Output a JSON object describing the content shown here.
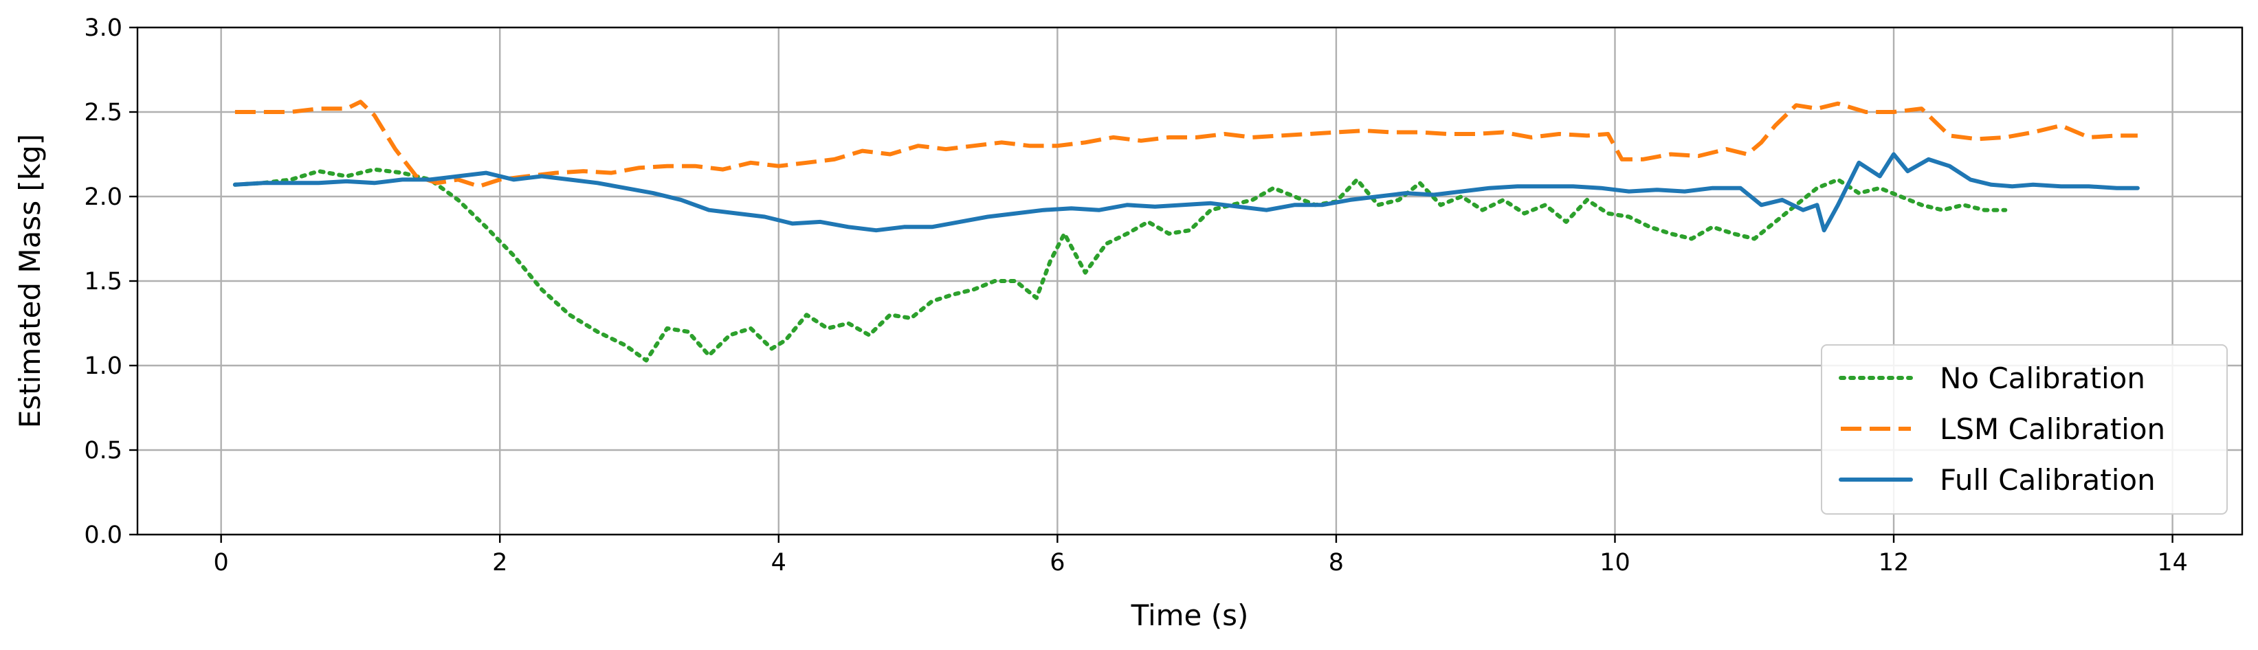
{
  "chart_data": {
    "type": "line",
    "title": "",
    "xlabel": "Time (s)",
    "ylabel": "Estimated Mass [kg]",
    "xlim": [
      -0.6,
      14.5
    ],
    "ylim": [
      0.0,
      3.0
    ],
    "x_ticks": [
      0,
      2,
      4,
      6,
      8,
      10,
      12,
      14
    ],
    "x_tick_labels": [
      "0",
      "2",
      "4",
      "6",
      "8",
      "10",
      "12",
      "14"
    ],
    "y_ticks": [
      0.0,
      0.5,
      1.0,
      1.5,
      2.0,
      2.5,
      3.0
    ],
    "y_tick_labels": [
      "0.0",
      "0.5",
      "1.0",
      "1.5",
      "2.0",
      "2.5",
      "3.0"
    ],
    "grid": true,
    "legend_position": "lower-right",
    "series": [
      {
        "name": "No Calibration",
        "color": "#2ca02c",
        "style": "dotted",
        "x": [
          0.1,
          0.3,
          0.5,
          0.7,
          0.9,
          1.1,
          1.3,
          1.5,
          1.7,
          1.9,
          2.1,
          2.3,
          2.5,
          2.7,
          2.9,
          3.05,
          3.2,
          3.35,
          3.5,
          3.65,
          3.8,
          3.95,
          4.05,
          4.2,
          4.35,
          4.5,
          4.65,
          4.8,
          4.95,
          5.1,
          5.25,
          5.4,
          5.55,
          5.7,
          5.85,
          5.95,
          6.05,
          6.2,
          6.35,
          6.5,
          6.65,
          6.8,
          6.95,
          7.1,
          7.25,
          7.4,
          7.55,
          7.7,
          7.85,
          8.0,
          8.15,
          8.3,
          8.45,
          8.6,
          8.75,
          8.9,
          9.05,
          9.2,
          9.35,
          9.5,
          9.65,
          9.8,
          9.95,
          10.1,
          10.25,
          10.4,
          10.55,
          10.7,
          10.85,
          11.0,
          11.15,
          11.3,
          11.45,
          11.6,
          11.75,
          11.9,
          12.05,
          12.2,
          12.35,
          12.5,
          12.65,
          12.8
        ],
        "y": [
          2.07,
          2.08,
          2.1,
          2.15,
          2.12,
          2.16,
          2.14,
          2.1,
          1.98,
          1.82,
          1.65,
          1.45,
          1.3,
          1.2,
          1.12,
          1.03,
          1.22,
          1.2,
          1.06,
          1.18,
          1.22,
          1.1,
          1.15,
          1.3,
          1.22,
          1.25,
          1.18,
          1.3,
          1.28,
          1.38,
          1.42,
          1.45,
          1.5,
          1.5,
          1.4,
          1.62,
          1.78,
          1.55,
          1.72,
          1.78,
          1.85,
          1.78,
          1.8,
          1.92,
          1.95,
          1.98,
          2.05,
          2.0,
          1.95,
          1.97,
          2.1,
          1.95,
          1.98,
          2.08,
          1.95,
          2.0,
          1.92,
          1.98,
          1.9,
          1.95,
          1.85,
          1.98,
          1.9,
          1.88,
          1.82,
          1.78,
          1.75,
          1.82,
          1.78,
          1.75,
          1.85,
          1.95,
          2.05,
          2.1,
          2.02,
          2.05,
          2.0,
          1.95,
          1.92,
          1.95,
          1.92,
          1.92
        ]
      },
      {
        "name": "LSM Calibration",
        "color": "#ff7f0e",
        "style": "dashed",
        "x": [
          0.1,
          0.3,
          0.5,
          0.7,
          0.9,
          1.0,
          1.1,
          1.25,
          1.4,
          1.55,
          1.7,
          1.85,
          2.0,
          2.2,
          2.4,
          2.6,
          2.8,
          3.0,
          3.2,
          3.4,
          3.6,
          3.8,
          4.0,
          4.2,
          4.4,
          4.6,
          4.8,
          5.0,
          5.2,
          5.4,
          5.6,
          5.8,
          6.0,
          6.2,
          6.4,
          6.6,
          6.8,
          7.0,
          7.2,
          7.4,
          7.6,
          7.8,
          8.0,
          8.2,
          8.4,
          8.6,
          8.8,
          9.0,
          9.2,
          9.4,
          9.6,
          9.8,
          9.95,
          10.05,
          10.2,
          10.4,
          10.6,
          10.8,
          10.95,
          11.05,
          11.15,
          11.3,
          11.45,
          11.6,
          11.8,
          12.0,
          12.2,
          12.4,
          12.6,
          12.8,
          13.0,
          13.2,
          13.4,
          13.6,
          13.75
        ],
        "y": [
          2.5,
          2.5,
          2.5,
          2.52,
          2.52,
          2.56,
          2.48,
          2.28,
          2.12,
          2.08,
          2.1,
          2.06,
          2.1,
          2.12,
          2.14,
          2.15,
          2.14,
          2.17,
          2.18,
          2.18,
          2.16,
          2.2,
          2.18,
          2.2,
          2.22,
          2.27,
          2.25,
          2.3,
          2.28,
          2.3,
          2.32,
          2.3,
          2.3,
          2.32,
          2.35,
          2.33,
          2.35,
          2.35,
          2.37,
          2.35,
          2.36,
          2.37,
          2.38,
          2.39,
          2.38,
          2.38,
          2.37,
          2.37,
          2.38,
          2.35,
          2.37,
          2.36,
          2.37,
          2.22,
          2.22,
          2.25,
          2.24,
          2.28,
          2.25,
          2.32,
          2.42,
          2.54,
          2.52,
          2.55,
          2.5,
          2.5,
          2.52,
          2.36,
          2.34,
          2.35,
          2.38,
          2.42,
          2.35,
          2.36,
          2.36
        ]
      },
      {
        "name": "Full Calibration",
        "color": "#1f77b4",
        "style": "solid",
        "x": [
          0.1,
          0.3,
          0.5,
          0.7,
          0.9,
          1.1,
          1.3,
          1.5,
          1.7,
          1.9,
          2.1,
          2.3,
          2.5,
          2.7,
          2.9,
          3.1,
          3.3,
          3.5,
          3.7,
          3.9,
          4.1,
          4.3,
          4.5,
          4.7,
          4.9,
          5.1,
          5.3,
          5.5,
          5.7,
          5.9,
          6.1,
          6.3,
          6.5,
          6.7,
          6.9,
          7.1,
          7.3,
          7.5,
          7.7,
          7.9,
          8.1,
          8.3,
          8.5,
          8.7,
          8.9,
          9.1,
          9.3,
          9.5,
          9.7,
          9.9,
          10.1,
          10.3,
          10.5,
          10.7,
          10.9,
          11.05,
          11.2,
          11.35,
          11.45,
          11.5,
          11.6,
          11.75,
          11.9,
          12.0,
          12.1,
          12.25,
          12.4,
          12.55,
          12.7,
          12.85,
          13.0,
          13.2,
          13.4,
          13.6,
          13.75
        ],
        "y": [
          2.07,
          2.08,
          2.08,
          2.08,
          2.09,
          2.08,
          2.1,
          2.1,
          2.12,
          2.14,
          2.1,
          2.12,
          2.1,
          2.08,
          2.05,
          2.02,
          1.98,
          1.92,
          1.9,
          1.88,
          1.84,
          1.85,
          1.82,
          1.8,
          1.82,
          1.82,
          1.85,
          1.88,
          1.9,
          1.92,
          1.93,
          1.92,
          1.95,
          1.94,
          1.95,
          1.96,
          1.94,
          1.92,
          1.95,
          1.95,
          1.98,
          2.0,
          2.02,
          2.01,
          2.03,
          2.05,
          2.06,
          2.06,
          2.06,
          2.05,
          2.03,
          2.04,
          2.03,
          2.05,
          2.05,
          1.95,
          1.98,
          1.92,
          1.95,
          1.8,
          1.95,
          2.2,
          2.12,
          2.25,
          2.15,
          2.22,
          2.18,
          2.1,
          2.07,
          2.06,
          2.07,
          2.06,
          2.06,
          2.05,
          2.05
        ]
      }
    ]
  }
}
